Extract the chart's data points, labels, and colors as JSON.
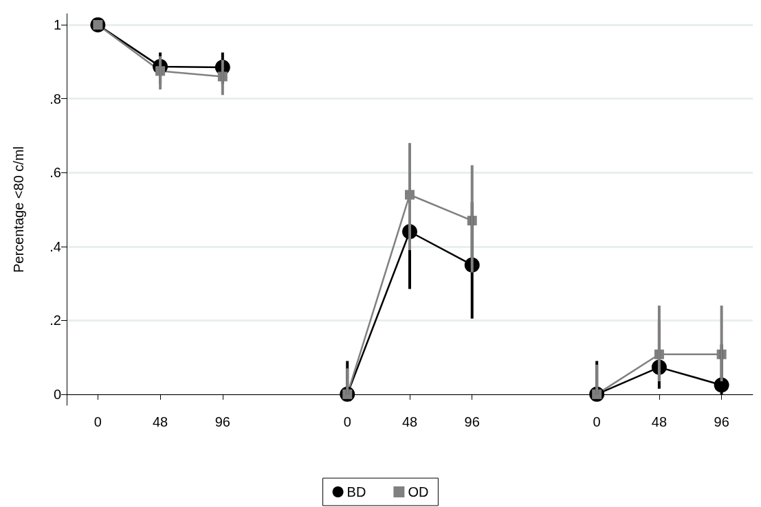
{
  "chart_data": {
    "type": "line",
    "ylabel": "Percentage <80 c/ml",
    "categories": [
      "0",
      "48",
      "96",
      null,
      "0",
      "48",
      "96",
      null,
      "0",
      "48",
      "96"
    ],
    "ylim": [
      -0.03,
      1.03
    ],
    "yticks": [
      {
        "value": 0,
        "label": "0"
      },
      {
        "value": 0.2,
        "label": ".2"
      },
      {
        "value": 0.4,
        "label": ".4"
      },
      {
        "value": 0.6,
        "label": ".6"
      },
      {
        "value": 0.8,
        "label": ".8"
      },
      {
        "value": 1,
        "label": "1"
      }
    ],
    "grid": "y",
    "legend": "bottom",
    "line_style": "solid",
    "series": [
      {
        "name": "BD",
        "color": "#000000",
        "marker": "circle",
        "values": [
          1.0,
          0.887,
          0.885,
          null,
          0,
          0.44,
          0.35,
          null,
          0,
          0.073,
          0.025
        ],
        "errors": [
          null,
          [
            0.84,
            0.925
          ],
          [
            0.84,
            0.925
          ],
          null,
          [
            0,
            0.09
          ],
          [
            0.285,
            0.605
          ],
          [
            0.205,
            0.52
          ],
          null,
          [
            0,
            0.09
          ],
          [
            0.015,
            0.2
          ],
          [
            0,
            0.135
          ]
        ]
      },
      {
        "name": "OD",
        "color": "#808080",
        "marker": "square",
        "values": [
          1.0,
          0.875,
          0.86,
          null,
          0,
          0.54,
          0.47,
          null,
          0,
          0.108,
          0.108
        ],
        "errors": [
          null,
          [
            0.825,
            0.915
          ],
          [
            0.81,
            0.905
          ],
          null,
          [
            0,
            0.07
          ],
          [
            0.39,
            0.68
          ],
          [
            0.33,
            0.62
          ],
          null,
          [
            0,
            0.08
          ],
          [
            0.035,
            0.24
          ],
          [
            0.035,
            0.24
          ]
        ]
      }
    ]
  }
}
